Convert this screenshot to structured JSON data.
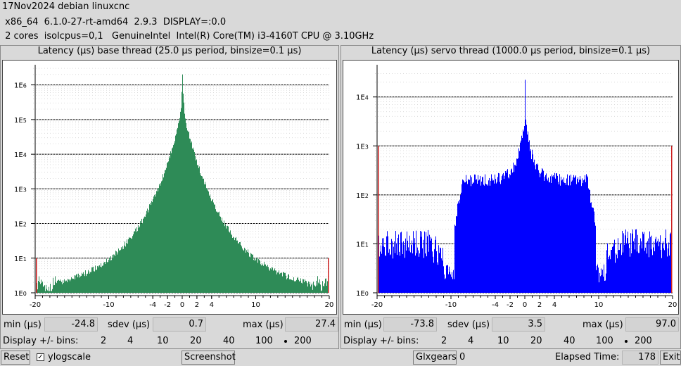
{
  "header": {
    "line1": "17Nov2024 debian linuxcnc",
    "line2": " x86_64  6.1.0-27-rt-amd64  2.9.3  DISPLAY=:0.0",
    "line3": " 2 cores  isolcpus=0,1   GenuineIntel  Intel(R) Core(TM) i3-4160T CPU @ 3.10GHz"
  },
  "base": {
    "title": "Latency (µs) base thread (25.0 µs period, binsize=0.1 µs)",
    "min_label": "min (µs)",
    "min": "-24.8",
    "sdev_label": "sdev (µs)",
    "sdev": "0.7",
    "max_label": "max (µs)",
    "max": "27.4"
  },
  "servo": {
    "title": "Latency (µs) servo thread (1000.0 µs period, binsize=0.1 µs)",
    "min_label": "min (µs)",
    "min": "-73.8",
    "sdev_label": "sdev (µs)",
    "sdev": "3.5",
    "max_label": "max (µs)",
    "max": "97.0"
  },
  "bins": {
    "label": "Display +/- bins:",
    "options": [
      "2",
      "4",
      "10",
      "20",
      "40",
      "100",
      "200"
    ],
    "selected": "200"
  },
  "footer": {
    "reset": "Reset",
    "ylogscale": "ylogscale",
    "ylogscale_checked": true,
    "screenshot": "Screenshot",
    "glxgears": "Glxgears",
    "glxgears_count": "0",
    "elapsed_label": "Elapsed Time:",
    "elapsed": "178",
    "exit": "Exit"
  },
  "colors": {
    "base_fill": "#2e8b57",
    "servo_fill": "#0000ff",
    "outlier": "#cc2222"
  },
  "chart_data": [
    {
      "type": "bar",
      "title": "Latency (µs) base thread (25.0 µs period, binsize=0.1 µs)",
      "x_ticks": [
        "-20",
        "-10",
        "-4",
        "-2",
        "0",
        "2",
        "4",
        "10",
        "20"
      ],
      "x_tick_values": [
        -20,
        -10,
        -4,
        -2,
        0,
        2,
        4,
        10,
        20
      ],
      "xlim": [
        -20,
        20
      ],
      "y_scale": "log",
      "y_ticks": [
        "1E0",
        "1E1",
        "1E2",
        "1E3",
        "1E4",
        "1E5",
        "1E6"
      ],
      "ylim_log10": [
        0,
        6.5
      ],
      "shape": {
        "peak_log10": 6.3,
        "core_log10": 5.3,
        "core_width": 0.8,
        "tail_decay": 0.17,
        "tail_floor": 3.3,
        "edge_value": 3,
        "edge_log10": 1.0
      },
      "outliers": [
        -20,
        20
      ]
    },
    {
      "type": "bar",
      "title": "Latency (µs) servo thread (1000.0 µs period, binsize=0.1 µs)",
      "x_ticks": [
        "-20",
        "-10",
        "-4",
        "-2",
        "0",
        "2",
        "4",
        "10",
        "20"
      ],
      "x_tick_values": [
        -20,
        -10,
        -4,
        -2,
        0,
        2,
        4,
        10,
        20
      ],
      "xlim": [
        -20,
        20
      ],
      "y_scale": "log",
      "y_ticks": [
        "1E0",
        "1E1",
        "1E2",
        "1E3",
        "1E4"
      ],
      "ylim_log10": [
        0,
        4.6
      ],
      "shape": {
        "peak_log10": 4.35,
        "core_log10": 3.6,
        "core_width": 1.0,
        "shoulder_log10": 2.3,
        "shoulder_width": 9.0,
        "tail_log10": 1.0
      },
      "outliers": [
        -20,
        20
      ]
    }
  ]
}
